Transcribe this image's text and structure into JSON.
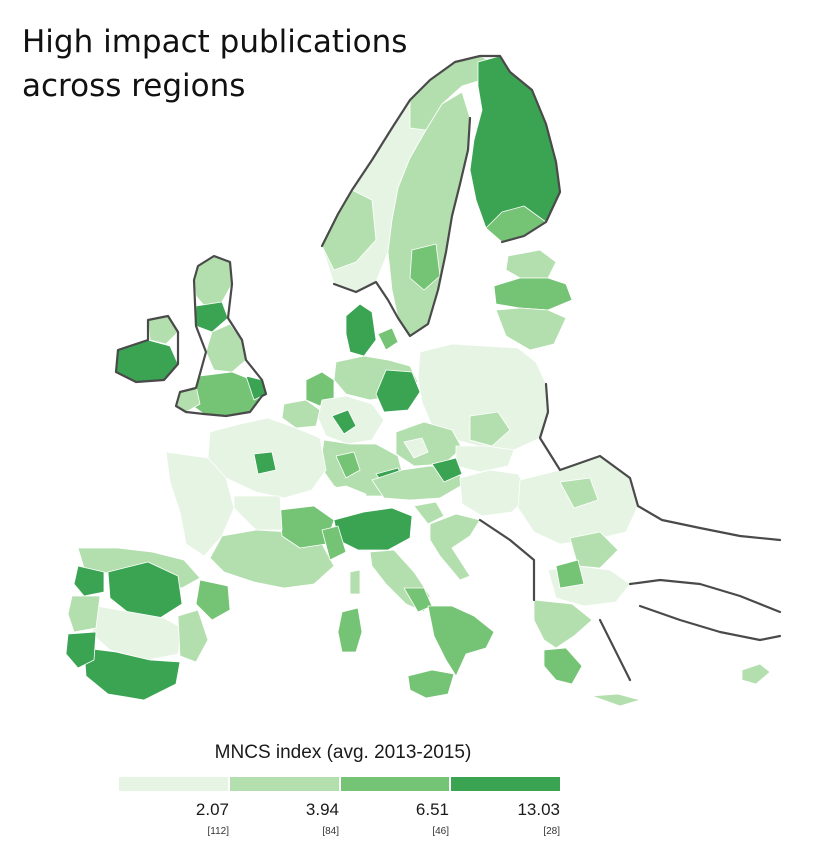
{
  "header": {
    "title_line1": "High impact publications",
    "title_line2": "across regions"
  },
  "legend": {
    "title": "MNCS index (avg. 2013-2015)",
    "classes": [
      {
        "value": "2.07",
        "count": "[112]",
        "color": "#e6f4e4"
      },
      {
        "value": "3.94",
        "count": "[84]",
        "color": "#b3dfae"
      },
      {
        "value": "6.51",
        "count": "[46]",
        "color": "#75c374"
      },
      {
        "value": "13.03",
        "count": "[28]",
        "color": "#3aa453"
      }
    ]
  },
  "map": {
    "outline_color": "#4a4a4a",
    "region_border_color": "#ffffff"
  }
}
